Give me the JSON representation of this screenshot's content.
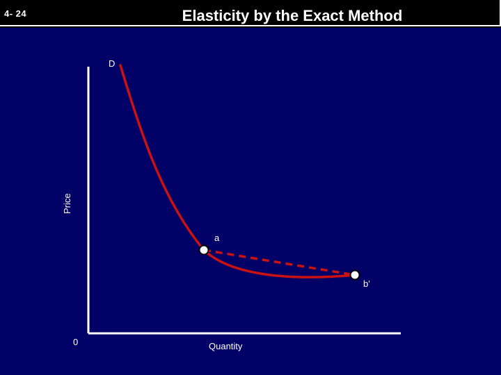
{
  "slide": {
    "number": "4- 24",
    "title": "Elasticity by the Exact Method"
  },
  "diagram": {
    "curve_label": "D",
    "y_axis_label": "Price",
    "x_axis_label": "Quantity",
    "origin_label": "0",
    "point_a_label": "a",
    "point_b_label": "b'"
  },
  "colors": {
    "background": "#000066",
    "title_background": "#000000",
    "axis": "#ffffff",
    "curve": "#cc1111",
    "point_fill": "#ffffff",
    "point_stroke": "#000000"
  }
}
